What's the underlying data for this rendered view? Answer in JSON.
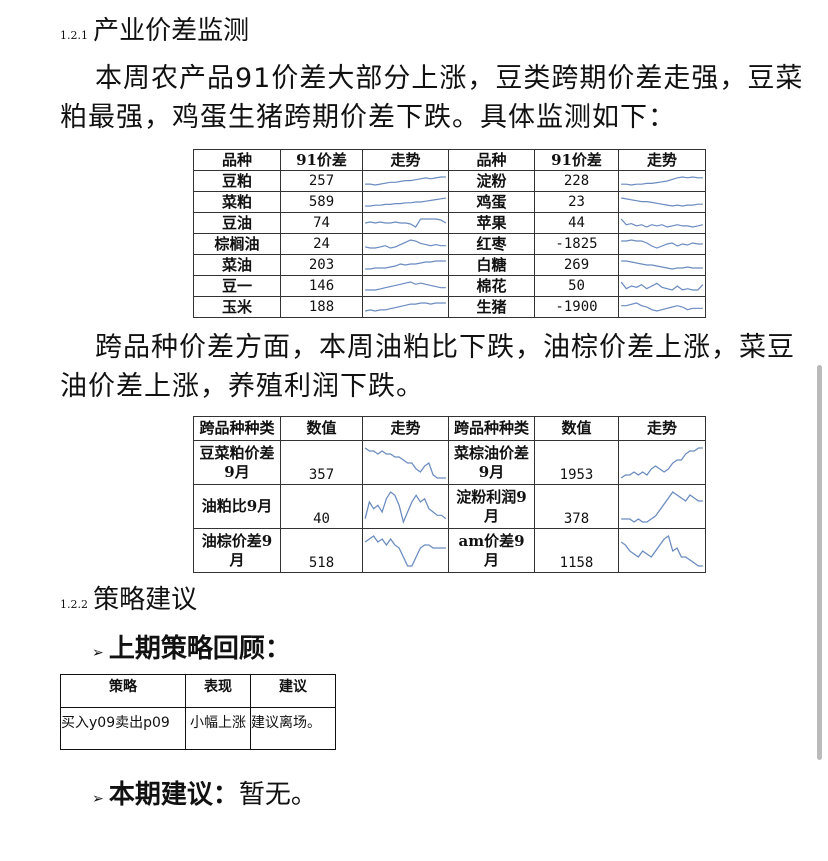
{
  "sec1": {
    "num": "1.2.1",
    "title": "产业价差监测"
  },
  "para1": "本周农产品91价差大部分上涨，豆类跨期价差走强，豆菜粕最强，鸡蛋生猪跨期价差下跌。具体监测如下：",
  "table1": {
    "headers": [
      "品种",
      "91价差",
      "走势",
      "品种",
      "91价差",
      "走势"
    ],
    "rows": [
      {
        "l": {
          "name": "豆粕",
          "value": "257",
          "trend": [
            2,
            2,
            1,
            2,
            3,
            4,
            4,
            5,
            6,
            6,
            7,
            8,
            9,
            8,
            9,
            10,
            10
          ]
        },
        "r": {
          "name": "淀粉",
          "value": "228",
          "trend": [
            2,
            2,
            1,
            2,
            2,
            3,
            3,
            4,
            5,
            6,
            8,
            10,
            11,
            10,
            11,
            10,
            10
          ]
        }
      },
      {
        "l": {
          "name": "菜粕",
          "value": "589",
          "trend": [
            1,
            1,
            2,
            2,
            3,
            3,
            4,
            4,
            5,
            5,
            6,
            6,
            7,
            8,
            9,
            10,
            11
          ]
        },
        "r": {
          "name": "鸡蛋",
          "value": "23",
          "trend": [
            10,
            9,
            8,
            7,
            6,
            6,
            5,
            4,
            3,
            2,
            1,
            2,
            1,
            2,
            2,
            3,
            3
          ]
        }
      },
      {
        "l": {
          "name": "豆油",
          "value": "74",
          "trend": [
            6,
            7,
            6,
            7,
            6,
            6,
            7,
            6,
            6,
            5,
            2,
            10,
            10,
            10,
            10,
            9,
            6
          ]
        },
        "r": {
          "name": "苹果",
          "value": "44",
          "trend": [
            10,
            5,
            6,
            4,
            5,
            3,
            5,
            4,
            5,
            3,
            4,
            5,
            4,
            4,
            3,
            4,
            5
          ]
        }
      },
      {
        "l": {
          "name": "棕榈油",
          "value": "24",
          "trend": [
            4,
            3,
            3,
            4,
            5,
            3,
            4,
            6,
            8,
            10,
            9,
            7,
            6,
            5,
            6,
            5,
            5
          ]
        },
        "r": {
          "name": "红枣",
          "value": "-1825",
          "trend": [
            8,
            8,
            9,
            8,
            8,
            6,
            3,
            1,
            3,
            5,
            6,
            3,
            5,
            4,
            6,
            5,
            5
          ]
        }
      },
      {
        "l": {
          "name": "菜油",
          "value": "203",
          "trend": [
            2,
            2,
            3,
            3,
            3,
            4,
            5,
            7,
            6,
            7,
            7,
            8,
            9,
            9,
            10,
            10,
            10
          ]
        },
        "r": {
          "name": "白糖",
          "value": "269",
          "trend": [
            9,
            9,
            8,
            7,
            6,
            5,
            5,
            4,
            3,
            2,
            1,
            2,
            2,
            3,
            2,
            2,
            2
          ]
        }
      },
      {
        "l": {
          "name": "豆一",
          "value": "146",
          "trend": [
            2,
            2,
            2,
            3,
            4,
            5,
            6,
            7,
            8,
            9,
            7,
            8,
            7,
            6,
            5,
            4,
            4
          ]
        },
        "r": {
          "name": "棉花",
          "value": "50",
          "trend": [
            8,
            3,
            5,
            4,
            6,
            3,
            5,
            7,
            4,
            3,
            2,
            5,
            2,
            3,
            2,
            2,
            6
          ]
        }
      },
      {
        "l": {
          "name": "玉米",
          "value": "188",
          "trend": [
            2,
            3,
            2,
            3,
            3,
            4,
            5,
            6,
            7,
            8,
            8,
            9,
            9,
            8,
            9,
            9,
            9
          ]
        },
        "r": {
          "name": "生猪",
          "value": "-1900",
          "trend": [
            6,
            6,
            7,
            8,
            6,
            5,
            3,
            2,
            3,
            4,
            5,
            6,
            5,
            3,
            4,
            4,
            4
          ]
        }
      }
    ]
  },
  "para2": "跨品种价差方面，本周油粕比下跌，油棕价差上涨，菜豆油价差上涨，养殖利润下跌。",
  "table2": {
    "headers": [
      "跨品种种类",
      "数值",
      "走势",
      "跨品种种类",
      "数值",
      "走势"
    ],
    "rows": [
      {
        "l": {
          "name": "豆菜粕价差9月",
          "value": "357",
          "trend": [
            10,
            9,
            9,
            8,
            9,
            8,
            8,
            7,
            7,
            6,
            5,
            5,
            3,
            2,
            4,
            5,
            1,
            0,
            0,
            0
          ]
        },
        "r": {
          "name": "菜棕油价差9月",
          "value": "1953",
          "trend": [
            0,
            1,
            1,
            2,
            1,
            2,
            1,
            3,
            4,
            3,
            2,
            3,
            5,
            6,
            6,
            8,
            9,
            9,
            10,
            10
          ]
        }
      },
      {
        "l": {
          "name": "油粕比9月",
          "value": "40",
          "trend": [
            2,
            7,
            5,
            6,
            4,
            8,
            10,
            9,
            6,
            1,
            4,
            7,
            9,
            7,
            8,
            5,
            4,
            3,
            3,
            2
          ]
        },
        "r": {
          "name": "淀粉利润9月",
          "value": "378",
          "trend": [
            1,
            1,
            1,
            0,
            1,
            0,
            0,
            1,
            2,
            4,
            6,
            8,
            10,
            9,
            8,
            7,
            9,
            8,
            7,
            7
          ]
        }
      },
      {
        "l": {
          "name": "油棕价差9月",
          "value": "518",
          "trend": [
            8,
            9,
            10,
            8,
            9,
            7,
            9,
            7,
            6,
            3,
            0,
            0,
            3,
            6,
            7,
            7,
            6,
            6,
            6,
            6
          ]
        },
        "r": {
          "name": "am价差9月",
          "value": "1158",
          "trend": [
            8,
            7,
            5,
            4,
            3,
            5,
            4,
            3,
            5,
            7,
            9,
            10,
            5,
            6,
            3,
            3,
            2,
            1,
            0,
            0
          ]
        }
      }
    ]
  },
  "sec2": {
    "num": "1.2.2",
    "title": "策略建议"
  },
  "review": {
    "title": "上期策略回顾：",
    "headers": [
      "策略",
      "表现",
      "建议"
    ],
    "row": [
      "买入y09卖出p09",
      "小幅上涨",
      "建议离场。"
    ]
  },
  "current": {
    "label": "本期建议：",
    "text": "暂无。"
  },
  "colors": {
    "sparkline": "#6b8cc0"
  }
}
